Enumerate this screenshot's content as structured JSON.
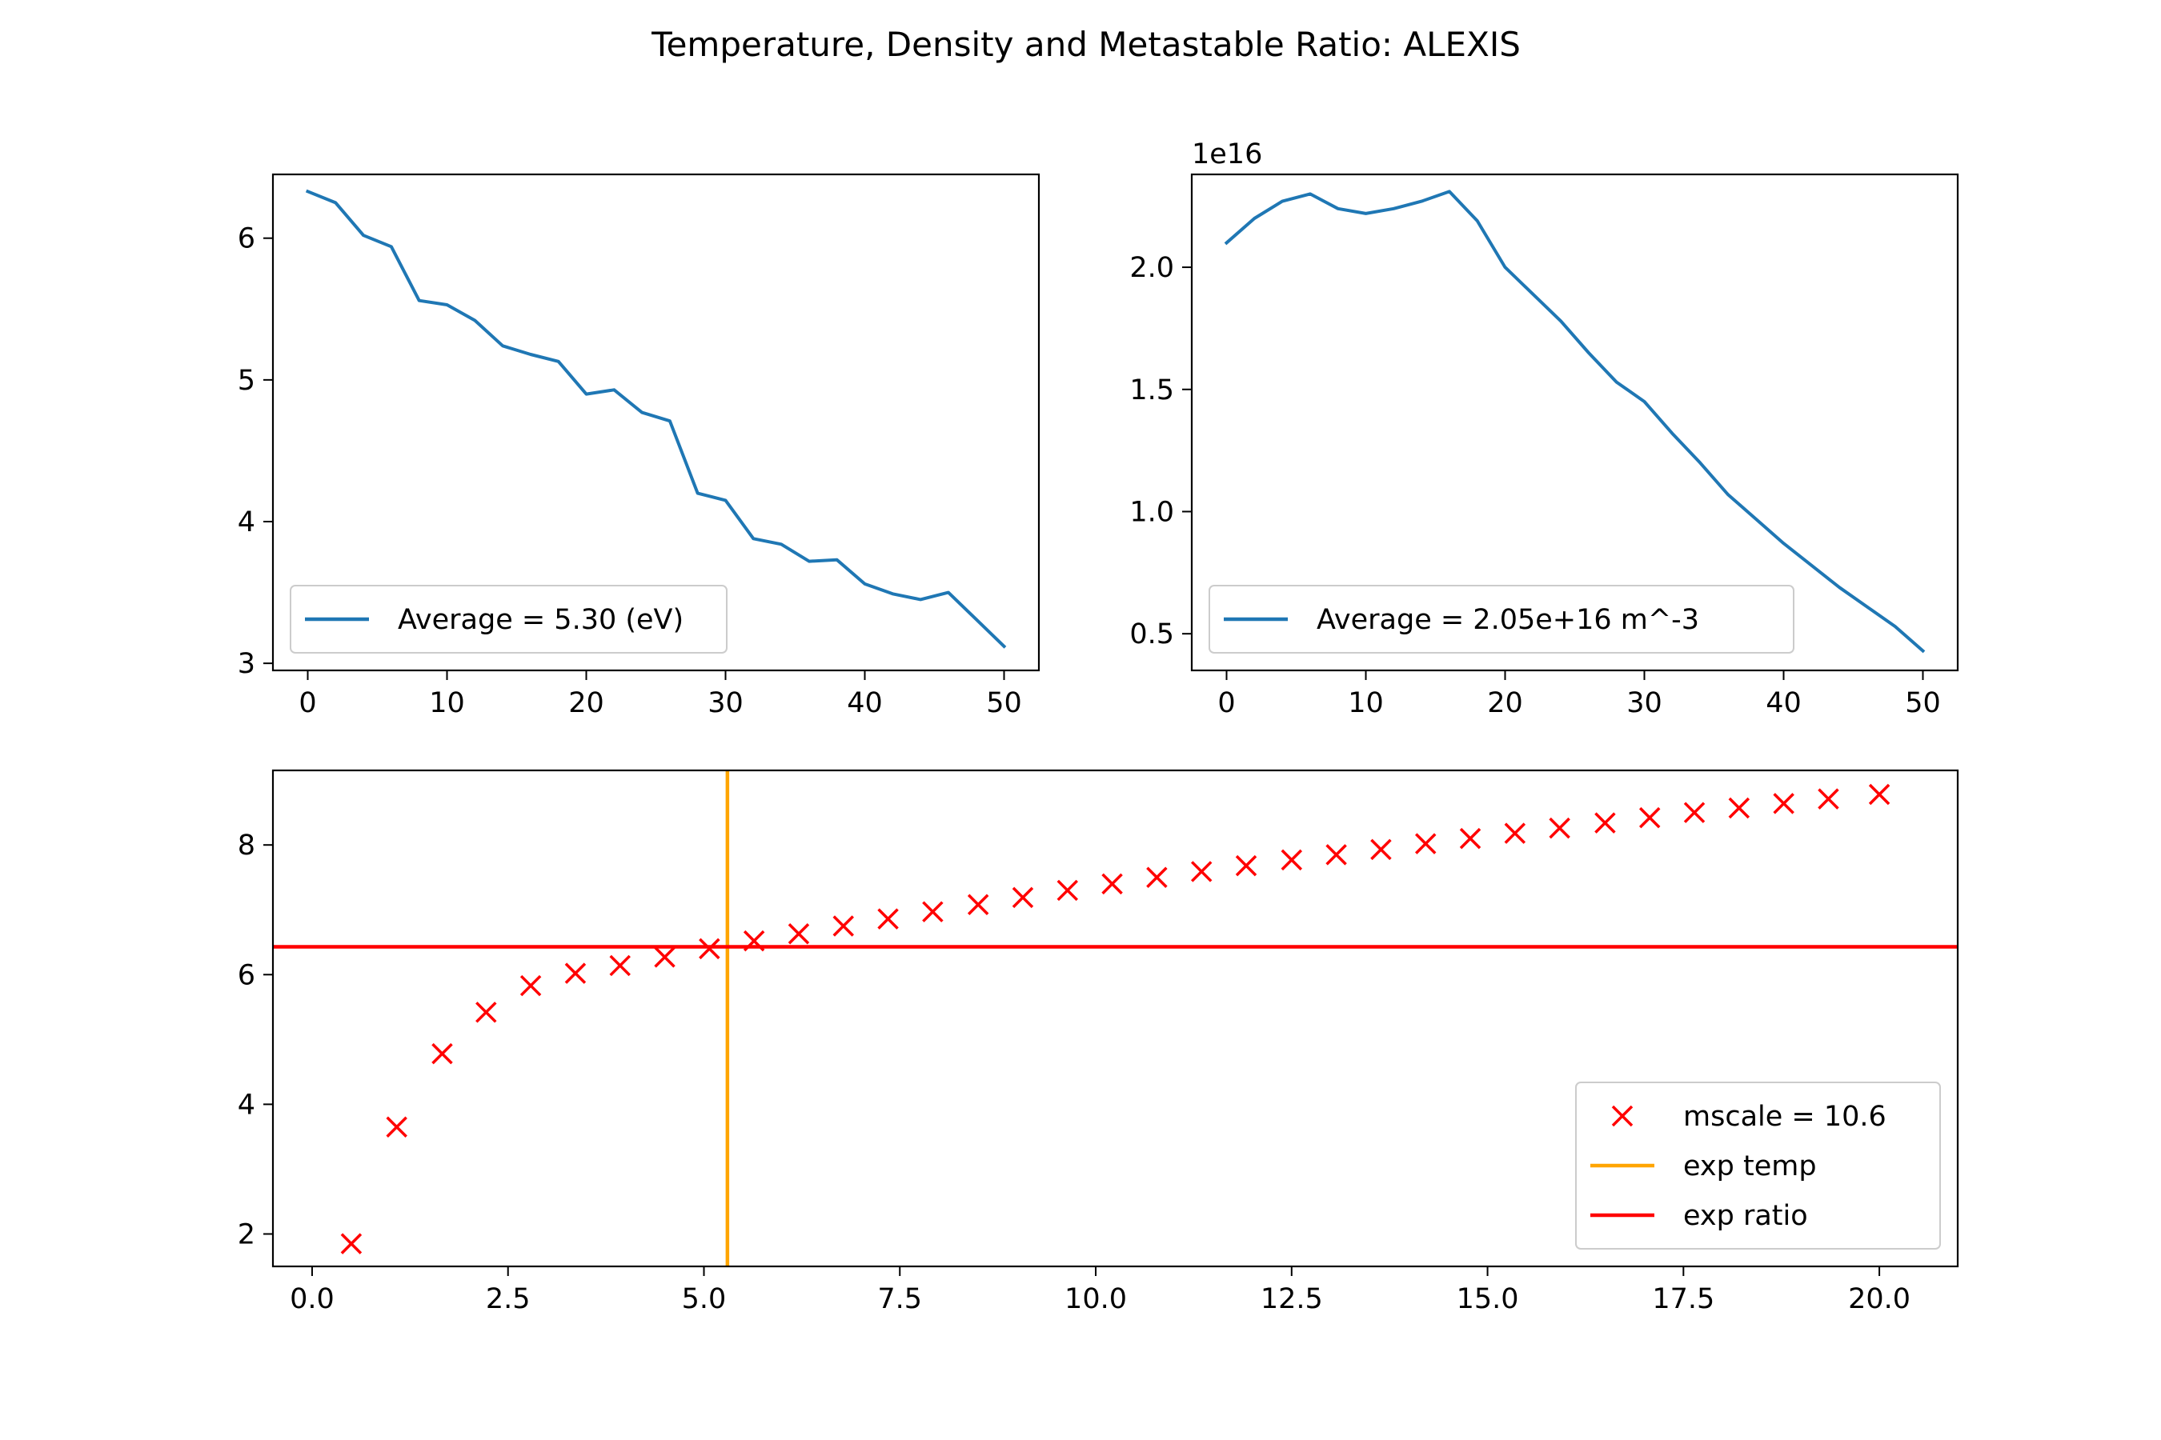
{
  "figure_title": "Temperature, Density and Metastable Ratio: ALEXIS",
  "chart_data": [
    {
      "id": "temperature",
      "type": "line",
      "title": "",
      "xlabel": "",
      "ylabel": "",
      "xlim": [
        -2.5,
        52.5
      ],
      "ylim": [
        2.95,
        6.45
      ],
      "x_ticks": [
        0,
        10,
        20,
        30,
        40,
        50
      ],
      "y_ticks": [
        3,
        4,
        5,
        6
      ],
      "grid": false,
      "legend_position": "lower-left",
      "series": [
        {
          "name": "Average =  5.30 (eV)",
          "color": "#1f77b4",
          "x": [
            0,
            2,
            4,
            6,
            8,
            10,
            12,
            14,
            16,
            18,
            20,
            22,
            24,
            26,
            28,
            30,
            32,
            34,
            36,
            38,
            40,
            42,
            44,
            46,
            48,
            50
          ],
          "y": [
            6.33,
            6.25,
            6.02,
            5.94,
            5.56,
            5.53,
            5.42,
            5.24,
            5.18,
            5.13,
            4.9,
            4.93,
            4.77,
            4.71,
            4.2,
            4.15,
            3.88,
            3.84,
            3.72,
            3.73,
            3.56,
            3.49,
            3.45,
            3.5,
            3.31,
            3.12
          ]
        }
      ]
    },
    {
      "id": "density",
      "type": "line",
      "title": "",
      "xlabel": "",
      "ylabel": "",
      "offset_text": "1e16",
      "xlim": [
        -2.5,
        52.5
      ],
      "ylim": [
        0.35,
        2.38
      ],
      "x_ticks": [
        0,
        10,
        20,
        30,
        40,
        50
      ],
      "y_ticks": [
        0.5,
        1.0,
        1.5,
        2.0
      ],
      "y_tick_labels": [
        "0.5",
        "1.0",
        "1.5",
        "2.0"
      ],
      "grid": false,
      "legend_position": "lower-left",
      "series": [
        {
          "name": "Average = 2.05e+16 m^-3",
          "color": "#1f77b4",
          "x": [
            0,
            2,
            4,
            6,
            8,
            10,
            12,
            14,
            16,
            18,
            20,
            22,
            24,
            26,
            28,
            30,
            32,
            34,
            36,
            38,
            40,
            42,
            44,
            46,
            48,
            50
          ],
          "y": [
            2.1,
            2.2,
            2.27,
            2.3,
            2.24,
            2.22,
            2.24,
            2.27,
            2.31,
            2.19,
            2.0,
            1.89,
            1.78,
            1.65,
            1.53,
            1.45,
            1.32,
            1.2,
            1.07,
            0.97,
            0.87,
            0.78,
            0.69,
            0.61,
            0.53,
            0.43
          ]
        }
      ]
    },
    {
      "id": "ratio",
      "type": "scatter",
      "title": "",
      "xlabel": "",
      "ylabel": "",
      "xlim": [
        -0.5,
        21.0
      ],
      "ylim": [
        1.5,
        9.15
      ],
      "x_ticks": [
        0.0,
        2.5,
        5.0,
        7.5,
        10.0,
        12.5,
        15.0,
        17.5,
        20.0
      ],
      "x_tick_labels": [
        "0.0",
        "2.5",
        "5.0",
        "7.5",
        "10.0",
        "12.5",
        "15.0",
        "17.5",
        "20.0"
      ],
      "y_ticks": [
        2,
        4,
        6,
        8
      ],
      "grid": false,
      "legend_position": "lower-right",
      "series": [
        {
          "name": "mscale = 10.6",
          "kind": "marker-x",
          "color": "#ff0000",
          "x": [
            0.5,
            1.08,
            1.66,
            2.22,
            2.79,
            3.36,
            3.93,
            4.5,
            5.07,
            5.64,
            6.21,
            6.78,
            7.35,
            7.92,
            8.5,
            9.07,
            9.64,
            10.21,
            10.78,
            11.35,
            11.92,
            12.5,
            13.07,
            13.64,
            14.21,
            14.78,
            15.35,
            15.92,
            16.5,
            17.07,
            17.64,
            18.21,
            18.78,
            19.35,
            20.0
          ],
          "y": [
            1.85,
            3.65,
            4.78,
            5.42,
            5.83,
            6.02,
            6.14,
            6.27,
            6.4,
            6.52,
            6.63,
            6.75,
            6.86,
            6.97,
            7.08,
            7.19,
            7.3,
            7.4,
            7.5,
            7.59,
            7.68,
            7.77,
            7.85,
            7.93,
            8.02,
            8.1,
            8.18,
            8.26,
            8.34,
            8.42,
            8.5,
            8.57,
            8.64,
            8.71,
            8.78
          ]
        },
        {
          "name": "exp temp",
          "kind": "vline",
          "color": "#ffa500",
          "x": 5.3
        },
        {
          "name": "exp ratio",
          "kind": "hline",
          "color": "#ff0000",
          "y": 6.43
        }
      ]
    }
  ]
}
